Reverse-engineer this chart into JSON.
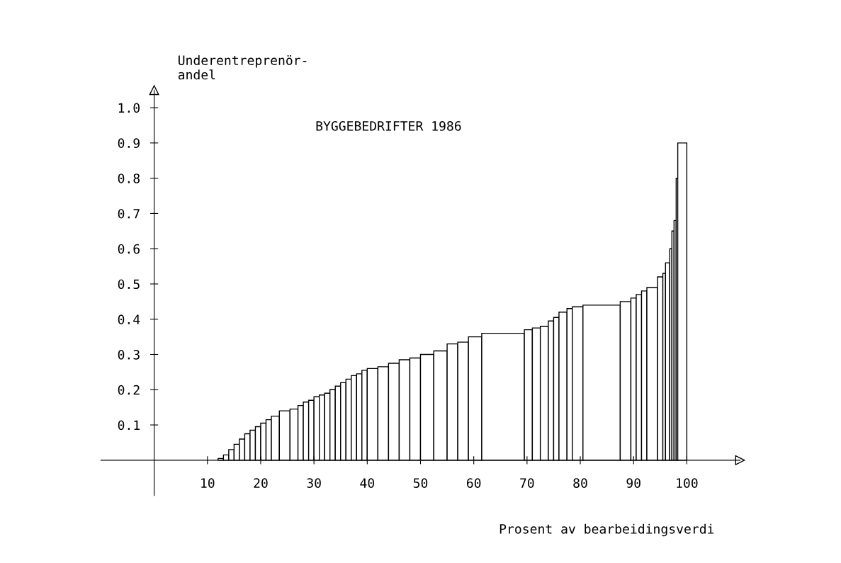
{
  "chart_data": {
    "type": "histogram",
    "title": "BYGGEBEDRIFTER 1986",
    "xlabel": "Prosent av bearbeidingsverdi",
    "ylabel": "Underentreprenör-\nandel",
    "bins": [
      12,
      13,
      14,
      15,
      16,
      17,
      18,
      19,
      20,
      21,
      22,
      23.5,
      25.5,
      27,
      28,
      29,
      30,
      31,
      32,
      33,
      34,
      35,
      36,
      37,
      38,
      39,
      40,
      42,
      44,
      46,
      48,
      50,
      52.5,
      55,
      57,
      59,
      61.5,
      69.5,
      71,
      72.5,
      74,
      75,
      76,
      77.5,
      78.5,
      80.5,
      87.5,
      89.5,
      90.5,
      91.5,
      92.5,
      94.5,
      95.5,
      96,
      96.8,
      97.2,
      97.6,
      98,
      98.3,
      100
    ],
    "values": [
      0.005,
      0.015,
      0.03,
      0.045,
      0.06,
      0.075,
      0.085,
      0.095,
      0.105,
      0.115,
      0.125,
      0.14,
      0.145,
      0.155,
      0.165,
      0.17,
      0.18,
      0.185,
      0.19,
      0.2,
      0.21,
      0.22,
      0.23,
      0.24,
      0.245,
      0.255,
      0.26,
      0.265,
      0.275,
      0.285,
      0.29,
      0.3,
      0.31,
      0.33,
      0.335,
      0.35,
      0.36,
      0.37,
      0.375,
      0.38,
      0.395,
      0.405,
      0.42,
      0.43,
      0.435,
      0.44,
      0.45,
      0.46,
      0.47,
      0.48,
      0.49,
      0.52,
      0.53,
      0.56,
      0.6,
      0.65,
      0.68,
      0.8,
      0.9
    ],
    "color": "#ffffff",
    "xlim": [
      -10,
      110
    ],
    "ylim": [
      -0.1,
      1.05
    ],
    "xticks": [
      10,
      20,
      30,
      40,
      50,
      60,
      70,
      80,
      90,
      100
    ],
    "yticks": [
      {
        "value": 0.1,
        "label": "0.1"
      },
      {
        "value": 0.2,
        "label": "0.2"
      },
      {
        "value": 0.3,
        "label": "0.3"
      },
      {
        "value": 0.4,
        "label": "0.4"
      },
      {
        "value": 0.5,
        "label": "0.5"
      },
      {
        "value": 0.6,
        "label": "0.6"
      },
      {
        "value": 0.7,
        "label": "0.7"
      },
      {
        "value": 0.8,
        "label": "0.8"
      },
      {
        "value": 0.9,
        "label": "0.9"
      },
      {
        "value": 1.0,
        "label": "1.0"
      }
    ],
    "grid": false,
    "legend": false
  }
}
